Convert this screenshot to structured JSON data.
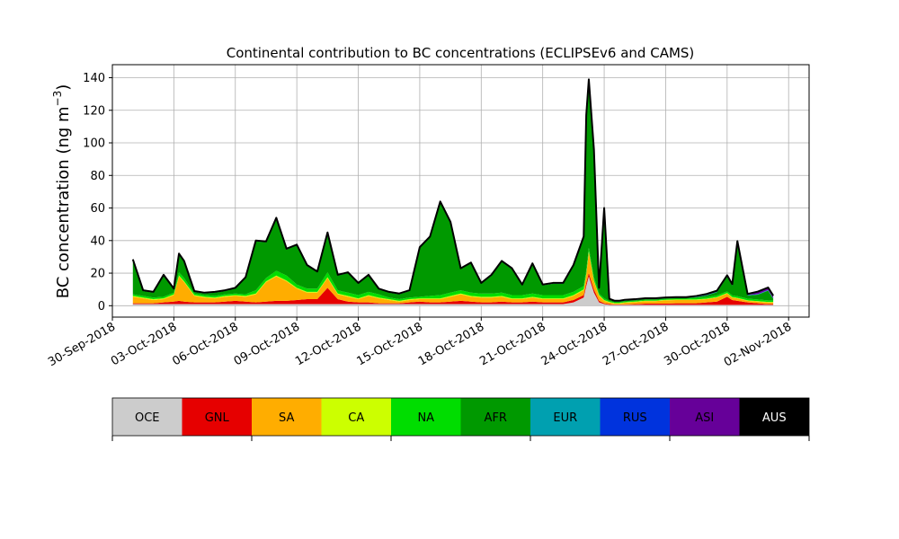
{
  "chart_data": {
    "type": "area",
    "stacked": true,
    "title": "Continental contribution to BC concentrations (ECLIPSEv6 and CAMS)",
    "ylabel": "BC concentration (ng m",
    "ylabel_exponent": "−3",
    "ylabel_close": ")",
    "xlim": [
      "2018-09-30",
      "2018-11-03"
    ],
    "ylim": [
      -7,
      148
    ],
    "grid": true,
    "x_ticks": [
      "30-Sep-2018",
      "03-Oct-2018",
      "06-Oct-2018",
      "09-Oct-2018",
      "12-Oct-2018",
      "15-Oct-2018",
      "18-Oct-2018",
      "21-Oct-2018",
      "24-Oct-2018",
      "27-Oct-2018",
      "30-Oct-2018",
      "02-Nov-2018"
    ],
    "y_ticks": [
      "0",
      "20",
      "40",
      "60",
      "80",
      "100",
      "120",
      "140"
    ],
    "x": [
      "2018-10-01",
      "2018-10-01 12:00",
      "2018-10-02",
      "2018-10-02 12:00",
      "2018-10-03",
      "2018-10-03 06:00",
      "2018-10-03 12:00",
      "2018-10-04",
      "2018-10-04 12:00",
      "2018-10-05",
      "2018-10-05 12:00",
      "2018-10-06",
      "2018-10-06 12:00",
      "2018-10-07",
      "2018-10-07 12:00",
      "2018-10-08",
      "2018-10-08 12:00",
      "2018-10-09",
      "2018-10-09 12:00",
      "2018-10-10",
      "2018-10-10 12:00",
      "2018-10-11",
      "2018-10-11 12:00",
      "2018-10-12",
      "2018-10-12 12:00",
      "2018-10-13",
      "2018-10-13 12:00",
      "2018-10-14",
      "2018-10-14 12:00",
      "2018-10-15",
      "2018-10-15 12:00",
      "2018-10-16",
      "2018-10-16 12:00",
      "2018-10-17",
      "2018-10-17 12:00",
      "2018-10-18",
      "2018-10-18 12:00",
      "2018-10-19",
      "2018-10-19 12:00",
      "2018-10-20",
      "2018-10-20 12:00",
      "2018-10-21",
      "2018-10-21 12:00",
      "2018-10-22",
      "2018-10-22 12:00",
      "2018-10-23",
      "2018-10-23 03:00",
      "2018-10-23 06:00",
      "2018-10-23 12:00",
      "2018-10-23 18:00",
      "2018-10-24",
      "2018-10-24 06:00",
      "2018-10-24 12:00",
      "2018-10-24 18:00",
      "2018-10-25",
      "2018-10-25 12:00",
      "2018-10-26",
      "2018-10-26 12:00",
      "2018-10-27",
      "2018-10-27 12:00",
      "2018-10-28",
      "2018-10-28 12:00",
      "2018-10-29",
      "2018-10-29 12:00",
      "2018-10-30",
      "2018-10-30 06:00",
      "2018-10-30 12:00",
      "2018-10-31",
      "2018-10-31 12:00",
      "2018-11-01",
      "2018-11-01 06:00"
    ],
    "series": [
      {
        "name": "OCE",
        "color": "#cccccc",
        "values": [
          1,
          1,
          1,
          1,
          1,
          1,
          1,
          1,
          1,
          1,
          1,
          1,
          1,
          1,
          1,
          1,
          1,
          1,
          1,
          1,
          1,
          1,
          1,
          1,
          1,
          1,
          1,
          1,
          1,
          1,
          1,
          1,
          1,
          1,
          1,
          1,
          1,
          1,
          1,
          1,
          1,
          1,
          1,
          1,
          2,
          5,
          12,
          18,
          8,
          2,
          1,
          0.5,
          0.5,
          0.5,
          0.5,
          0.5,
          0.5,
          0.5,
          0.5,
          0.5,
          0.5,
          0.5,
          0.5,
          0.5,
          0.5,
          0.5,
          0.5,
          0.5,
          0.5,
          0.5,
          0.5
        ]
      },
      {
        "name": "GNL",
        "color": "#e60000",
        "values": [
          0.5,
          0.5,
          0.5,
          1,
          1.5,
          2,
          1.5,
          1,
          1,
          1,
          1.5,
          2,
          1.5,
          1,
          1.5,
          2,
          2,
          2.5,
          3,
          3,
          10,
          3,
          1.5,
          1,
          1,
          0.5,
          0.5,
          0.5,
          1,
          1.5,
          1,
          1,
          1.5,
          2,
          1.5,
          1,
          1,
          1.5,
          1,
          1,
          1.5,
          1,
          1,
          1,
          1.5,
          1.5,
          2,
          2,
          2,
          1,
          0.5,
          0.5,
          0.3,
          0.3,
          0.3,
          0.5,
          0.8,
          0.8,
          0.8,
          1,
          1,
          1,
          1.5,
          2,
          5,
          3,
          2.5,
          1.5,
          1,
          0.5,
          0.5
        ]
      },
      {
        "name": "SA",
        "color": "#ffad00",
        "values": [
          4,
          3,
          2,
          2,
          4,
          15,
          12,
          4,
          3,
          2.5,
          3,
          3,
          3,
          5,
          12,
          15,
          12,
          7,
          4,
          4,
          6,
          3,
          3,
          2,
          4,
          3,
          2,
          1,
          1.5,
          1.5,
          2,
          2,
          3,
          4,
          3,
          3,
          3,
          3,
          2,
          2,
          2.5,
          2,
          2,
          2,
          2.5,
          3,
          5,
          13,
          5,
          3,
          1.5,
          1,
          0.5,
          0.5,
          1,
          1.2,
          1.5,
          1.5,
          2,
          2,
          2,
          2,
          2,
          2.5,
          2,
          1.5,
          1.5,
          1,
          1,
          1,
          1
        ]
      },
      {
        "name": "CA",
        "color": "#ccff00",
        "values": [
          0.5,
          0.5,
          0.5,
          0.5,
          0.5,
          0.5,
          0.5,
          0.5,
          0.5,
          0.5,
          0.5,
          0.5,
          0.5,
          0.5,
          0.5,
          0.5,
          0.5,
          0.5,
          0.5,
          0.5,
          0.5,
          0.5,
          0.5,
          0.5,
          0.5,
          0.5,
          0.5,
          0.5,
          0.5,
          0.5,
          0.5,
          0.5,
          0.5,
          0.5,
          0.5,
          0.5,
          0.5,
          0.5,
          0.5,
          0.5,
          0.5,
          0.5,
          0.5,
          0.5,
          0.5,
          0.5,
          0.5,
          0.5,
          0.5,
          0.5,
          0.5,
          0.3,
          0.3,
          0.3,
          0.3,
          0.3,
          0.3,
          0.3,
          0.3,
          0.3,
          0.3,
          0.3,
          0.3,
          0.3,
          0.3,
          0.3,
          0.3,
          0.3,
          0.3,
          0.3,
          0.3
        ]
      },
      {
        "name": "NA",
        "color": "#00dd00",
        "values": [
          1,
          1,
          1,
          1,
          1,
          2,
          2,
          1,
          1,
          1,
          1,
          1,
          1,
          2,
          2,
          3,
          3,
          2,
          2,
          2,
          3,
          2,
          2,
          2,
          2,
          2,
          1,
          1,
          1,
          1,
          1.5,
          2,
          2,
          2,
          2,
          2,
          2,
          2,
          2,
          2,
          2,
          2,
          2,
          2,
          2,
          2,
          2,
          2,
          2,
          1,
          1,
          0.5,
          0.5,
          0.5,
          0.5,
          0.5,
          0.5,
          0.5,
          0.5,
          0.5,
          0.5,
          1,
          1,
          1,
          1,
          1,
          1,
          1,
          1,
          1,
          1
        ]
      },
      {
        "name": "AFR",
        "color": "#009900",
        "values": [
          21,
          3,
          3,
          13,
          2,
          11,
          10,
          1,
          1,
          2,
          2,
          3,
          10,
          30,
          22,
          32,
          16,
          24,
          14,
          10,
          24,
          9,
          12,
          7,
          10,
          3,
          3,
          3,
          4,
          30,
          36,
          57,
          43,
          13,
          18,
          6,
          11,
          19,
          16,
          6,
          18,
          6,
          7,
          7,
          16,
          30,
          95,
          103,
          78,
          3,
          55,
          1,
          0.5,
          0.5,
          0.5,
          0.5,
          0.5,
          0.5,
          0.5,
          0.5,
          0.5,
          0.5,
          1,
          2,
          9,
          6,
          33,
          2,
          3,
          6,
          1
        ]
      },
      {
        "name": "EUR",
        "color": "#00a0b0",
        "values": [
          0.2,
          0.2,
          0.2,
          0.2,
          0.2,
          0.2,
          0.2,
          0.2,
          0.2,
          0.2,
          0.2,
          0.2,
          0.2,
          0.2,
          0.2,
          0.2,
          0.2,
          0.2,
          0.2,
          0.2,
          0.2,
          0.2,
          0.2,
          0.2,
          0.2,
          0.2,
          0.2,
          0.2,
          0.2,
          0.2,
          0.2,
          0.2,
          0.2,
          0.2,
          0.2,
          0.2,
          0.2,
          0.2,
          0.2,
          0.2,
          0.2,
          0.2,
          0.2,
          0.2,
          0.2,
          0.2,
          0.2,
          0.2,
          0.2,
          0.2,
          0.2,
          0.2,
          0.2,
          0.2,
          0.2,
          0.2,
          0.2,
          0.2,
          0.2,
          0.2,
          0.2,
          0.2,
          0.2,
          0.2,
          0.2,
          0.2,
          0.2,
          0.2,
          0.2,
          0.2,
          0.2
        ]
      },
      {
        "name": "RUS",
        "color": "#0033dd",
        "values": [
          0.2,
          0.2,
          0.2,
          0.2,
          0.2,
          0.2,
          0.2,
          0.2,
          0.2,
          0.2,
          0.2,
          0.2,
          0.2,
          0.2,
          0.2,
          0.2,
          0.2,
          0.2,
          0.2,
          0.2,
          0.2,
          0.2,
          0.2,
          0.2,
          0.2,
          0.2,
          0.2,
          0.2,
          0.2,
          0.2,
          0.2,
          0.2,
          0.2,
          0.2,
          0.2,
          0.2,
          0.2,
          0.2,
          0.2,
          0.2,
          0.2,
          0.2,
          0.2,
          0.2,
          0.2,
          0.2,
          0.2,
          0.2,
          0.2,
          0.2,
          0.2,
          0.2,
          0.2,
          0.2,
          0.2,
          0.2,
          0.2,
          0.2,
          0.2,
          0.2,
          0.2,
          0.2,
          0.2,
          0.2,
          0.2,
          0.2,
          0.2,
          0.2,
          0.2,
          0.2,
          0.2
        ]
      },
      {
        "name": "ASI",
        "color": "#660099",
        "values": [
          0.1,
          0.1,
          0.1,
          0.1,
          0.1,
          0.1,
          0.1,
          0.1,
          0.1,
          0.1,
          0.1,
          0.1,
          0.1,
          0.1,
          0.1,
          0.1,
          0.1,
          0.1,
          0.1,
          0.1,
          0.1,
          0.1,
          0.1,
          0.1,
          0.1,
          0.1,
          0.1,
          0.1,
          0.1,
          0.1,
          0.1,
          0.1,
          0.1,
          0.1,
          0.1,
          0.1,
          0.1,
          0.1,
          0.1,
          0.1,
          0.1,
          0.1,
          0.1,
          0.1,
          0.1,
          0.1,
          0.1,
          0.1,
          0.1,
          0.1,
          0.1,
          0.1,
          0.1,
          0.1,
          0.1,
          0.1,
          0.1,
          0.1,
          0.1,
          0.1,
          0.1,
          0.3,
          0.5,
          0.5,
          0.5,
          0.5,
          0.5,
          0.5,
          1.5,
          1.5,
          1.5
        ]
      },
      {
        "name": "AUS",
        "color": "#000000",
        "values": [
          0,
          0,
          0,
          0,
          0,
          0,
          0,
          0,
          0,
          0,
          0,
          0,
          0,
          0,
          0,
          0,
          0,
          0,
          0,
          0,
          0,
          0,
          0,
          0,
          0,
          0,
          0,
          0,
          0,
          0,
          0,
          0,
          0,
          0,
          0,
          0,
          0,
          0,
          0,
          0,
          0,
          0,
          0,
          0,
          0,
          0,
          0,
          0,
          0,
          0,
          0,
          0,
          0,
          0,
          0,
          0,
          0,
          0,
          0,
          0,
          0,
          0,
          0,
          0,
          0,
          0,
          0,
          0,
          0,
          0,
          0
        ]
      }
    ],
    "total_line_color": "#000000",
    "legend_placement": "bottom colorbar"
  }
}
